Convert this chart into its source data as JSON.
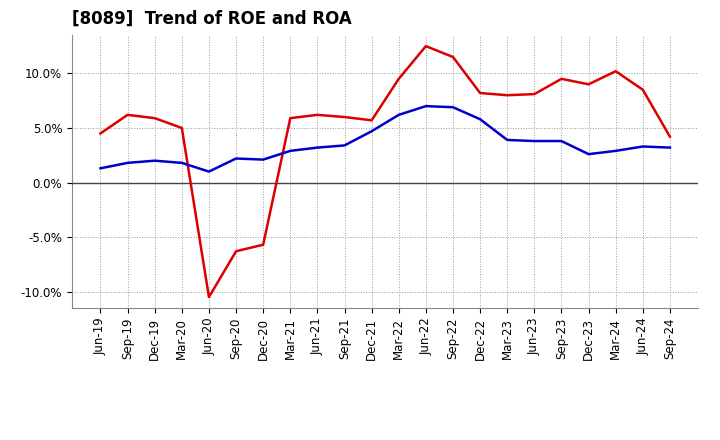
{
  "title": "[8089]  Trend of ROE and ROA",
  "x_labels": [
    "Jun-19",
    "Sep-19",
    "Dec-19",
    "Mar-20",
    "Jun-20",
    "Sep-20",
    "Dec-20",
    "Mar-21",
    "Jun-21",
    "Sep-21",
    "Dec-21",
    "Mar-22",
    "Jun-22",
    "Sep-22",
    "Dec-22",
    "Mar-23",
    "Jun-23",
    "Sep-23",
    "Dec-23",
    "Mar-24",
    "Jun-24",
    "Sep-24"
  ],
  "roe": [
    4.5,
    6.2,
    5.9,
    5.0,
    -10.5,
    -6.3,
    -5.7,
    5.9,
    6.2,
    6.0,
    5.7,
    9.5,
    12.5,
    11.5,
    8.2,
    8.0,
    8.1,
    9.5,
    9.0,
    10.2,
    8.5,
    4.2
  ],
  "roa": [
    1.3,
    1.8,
    2.0,
    1.8,
    1.0,
    2.2,
    2.1,
    2.9,
    3.2,
    3.4,
    4.7,
    6.2,
    7.0,
    6.9,
    5.8,
    3.9,
    3.8,
    3.8,
    2.6,
    2.9,
    3.3,
    3.2
  ],
  "roe_color": "#dd0000",
  "roa_color": "#0000cc",
  "ylim": [
    -11.5,
    13.5
  ],
  "yticks": [
    -10.0,
    -5.0,
    0.0,
    5.0,
    10.0
  ],
  "ytick_labels": [
    "-10.0%",
    "-5.0%",
    "0.0%",
    "5.0%",
    "10.0%"
  ],
  "background_color": "#ffffff",
  "plot_bg_color": "#ffffff",
  "grid_color": "#999999",
  "zero_line_color": "#444444",
  "title_fontsize": 12,
  "legend_fontsize": 10,
  "tick_fontsize": 8.5
}
